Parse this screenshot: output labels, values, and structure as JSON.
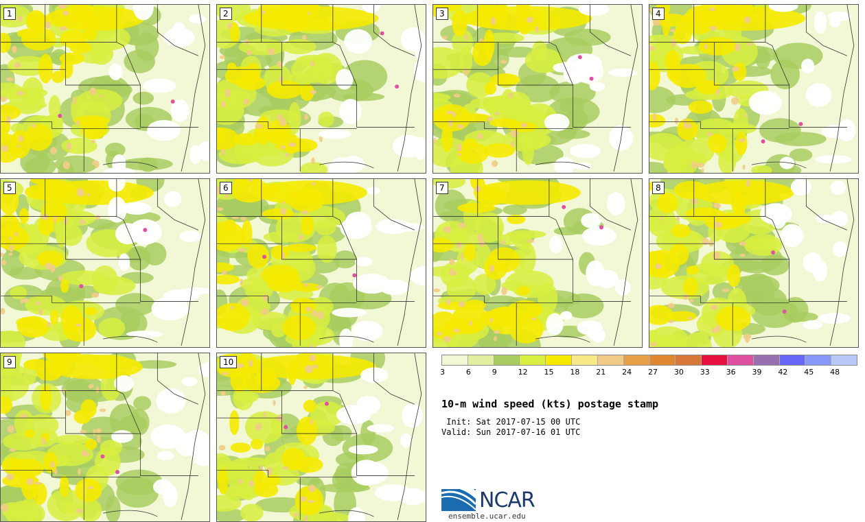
{
  "panels": [
    {
      "label": "1"
    },
    {
      "label": "2"
    },
    {
      "label": "3"
    },
    {
      "label": "4"
    },
    {
      "label": "5"
    },
    {
      "label": "6"
    },
    {
      "label": "7"
    },
    {
      "label": "8"
    },
    {
      "label": "9"
    },
    {
      "label": "10"
    }
  ],
  "legend": {
    "colors": [
      "#f2f7d6",
      "#e0f0a0",
      "#a9cc60",
      "#d8ee40",
      "#f5ea00",
      "#f7e888",
      "#f0cc88",
      "#e8a048",
      "#e08830",
      "#d87838",
      "#e8103c",
      "#e050a0",
      "#9870b0",
      "#6868f8",
      "#8898f8",
      "#b8c8f8"
    ],
    "ticks": [
      "3",
      "6",
      "9",
      "12",
      "15",
      "18",
      "21",
      "24",
      "27",
      "30",
      "33",
      "36",
      "39",
      "42",
      "45",
      "48"
    ]
  },
  "title": "10-m wind speed (kts) postage stamp",
  "init": " Init: Sat 2017-07-15 00 UTC",
  "valid": "Valid: Sun 2017-07-16 01 UTC",
  "logo": {
    "name": "NCAR",
    "url": "ensemble.ucar.edu"
  }
}
